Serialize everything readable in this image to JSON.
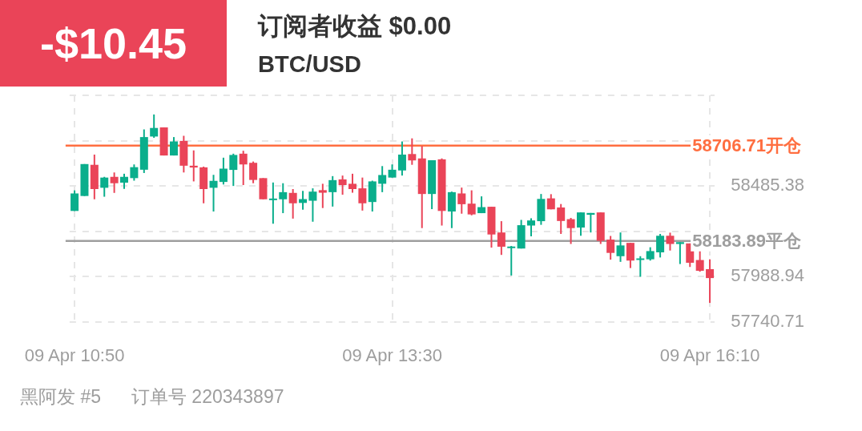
{
  "chart_data": {
    "type": "candlestick",
    "title": "订阅者收益 $0.00",
    "subtitle": "BTC/USD",
    "annotations": [
      "-$10.45",
      "黑阿发 #5",
      "订单号 220343897"
    ],
    "categories": [
      "09 Apr 10:50",
      null,
      null,
      null,
      null,
      null,
      null,
      null,
      null,
      null,
      null,
      null,
      null,
      null,
      null,
      null,
      null,
      null,
      null,
      null,
      null,
      null,
      null,
      null,
      null,
      null,
      null,
      null,
      null,
      null,
      null,
      null,
      "09 Apr 13:30",
      null,
      null,
      null,
      null,
      null,
      null,
      null,
      null,
      null,
      null,
      null,
      null,
      null,
      null,
      null,
      null,
      null,
      null,
      null,
      null,
      null,
      null,
      null,
      null,
      null,
      null,
      null,
      null,
      null,
      null,
      null,
      "09 Apr 16:10"
    ],
    "ohlc": [
      [
        58348,
        58461,
        58348,
        58444
      ],
      [
        58430,
        58605,
        58430,
        58605
      ],
      [
        58601,
        58657,
        58412,
        58468
      ],
      [
        58475,
        58535,
        58426,
        58531
      ],
      [
        58535,
        58559,
        58447,
        58500
      ],
      [
        58503,
        58552,
        58469,
        58535
      ],
      [
        58528,
        58603,
        58514,
        58588
      ],
      [
        58574,
        58795,
        58556,
        58753
      ],
      [
        58756,
        58877,
        58749,
        58803
      ],
      [
        58806,
        58806,
        58652,
        58652
      ],
      [
        58652,
        58753,
        58652,
        58729
      ],
      [
        58732,
        58760,
        58559,
        58596
      ],
      [
        58596,
        58680,
        58510,
        58586
      ],
      [
        58587,
        58591,
        58390,
        58468
      ],
      [
        58475,
        58546,
        58345,
        58513
      ],
      [
        58507,
        58640,
        58493,
        58580
      ],
      [
        58573,
        58662,
        58485,
        58655
      ],
      [
        58662,
        58678,
        58490,
        58603
      ],
      [
        58612,
        58619,
        58500,
        58518
      ],
      [
        58528,
        58528,
        58412,
        58412
      ],
      [
        58409,
        58504,
        58278,
        58416
      ],
      [
        58412,
        58500,
        58336,
        58451
      ],
      [
        58447,
        58468,
        58306,
        58390
      ],
      [
        58392,
        58458,
        58355,
        58413
      ],
      [
        58404,
        58472,
        58289,
        58454
      ],
      [
        58462,
        58497,
        58364,
        58448
      ],
      [
        58451,
        58539,
        58372,
        58517
      ],
      [
        58521,
        58542,
        58437,
        58490
      ],
      [
        58497,
        58552,
        58448,
        58468
      ],
      [
        58472,
        58531,
        58350,
        58390
      ],
      [
        58397,
        58514,
        58345,
        58510
      ],
      [
        58497,
        58594,
        58451,
        58545
      ],
      [
        58531,
        58603,
        58531,
        58574
      ],
      [
        58570,
        58729,
        58542,
        58657
      ],
      [
        58660,
        58746,
        58601,
        58625
      ],
      [
        58636,
        58704,
        58254,
        58441
      ],
      [
        58441,
        58626,
        58358,
        58626
      ],
      [
        58631,
        58636,
        58268,
        58348
      ],
      [
        58345,
        58454,
        58254,
        58451
      ],
      [
        58444,
        58476,
        58333,
        58385
      ],
      [
        58388,
        58461,
        58324,
        58329
      ],
      [
        58336,
        58428,
        58336,
        58369
      ],
      [
        58371,
        58371,
        58147,
        58219
      ],
      [
        58230,
        58292,
        58107,
        58152
      ],
      [
        58146,
        58156,
        57994,
        58153
      ],
      [
        58142,
        58299,
        58142,
        58270
      ],
      [
        58268,
        58308,
        58209,
        58296
      ],
      [
        58292,
        58441,
        58272,
        58414
      ],
      [
        58417,
        58440,
        58357,
        58357
      ],
      [
        58367,
        58386,
        58222,
        58293
      ],
      [
        58303,
        58310,
        58167,
        58254
      ],
      [
        58257,
        58340,
        58212,
        58340
      ],
      [
        58327,
        58337,
        58230,
        58337
      ],
      [
        58340,
        58340,
        58167,
        58184
      ],
      [
        58191,
        58211,
        58081,
        58118
      ],
      [
        58100,
        58230,
        58069,
        58159
      ],
      [
        58173,
        58173,
        58035,
        58076
      ],
      [
        58083,
        58100,
        57987,
        58088
      ],
      [
        58083,
        58149,
        58076,
        58128
      ],
      [
        58121,
        58222,
        58093,
        58212
      ],
      [
        58212,
        58229,
        58131,
        58167
      ],
      [
        58167,
        58177,
        58057,
        58177
      ],
      [
        58170,
        58170,
        58041,
        58064
      ],
      [
        58079,
        58131,
        58015,
        58020
      ],
      [
        58029,
        58083,
        57844,
        57980
      ]
    ],
    "colors": [
      "#0aae8c",
      "#0aae8c",
      "#ea4458",
      "#0aae8c",
      "#ea4458",
      "#0aae8c",
      "#0aae8c",
      "#0aae8c",
      "#0aae8c",
      "#ea4458",
      "#0aae8c",
      "#ea4458",
      "#ea4458",
      "#ea4458",
      "#0aae8c",
      "#0aae8c",
      "#0aae8c",
      "#ea4458",
      "#ea4458",
      "#ea4458",
      "#0aae8c",
      "#0aae8c",
      "#ea4458",
      "#0aae8c",
      "#0aae8c",
      "#ea4458",
      "#0aae8c",
      "#ea4458",
      "#ea4458",
      "#ea4458",
      "#0aae8c",
      "#0aae8c",
      "#0aae8c",
      "#0aae8c",
      "#ea4458",
      "#ea4458",
      "#0aae8c",
      "#ea4458",
      "#0aae8c",
      "#ea4458",
      "#ea4458",
      "#0aae8c",
      "#ea4458",
      "#ea4458",
      "#0aae8c",
      "#0aae8c",
      "#0aae8c",
      "#0aae8c",
      "#ea4458",
      "#ea4458",
      "#ea4458",
      "#0aae8c",
      "#0aae8c",
      "#ea4458",
      "#ea4458",
      "#0aae8c",
      "#ea4458",
      "#0aae8c",
      "#0aae8c",
      "#0aae8c",
      "#ea4458",
      "#0aae8c",
      "#ea4458",
      "#ea4458",
      "#ea4458"
    ],
    "ylim": [
      57740.71,
      58981.83
    ],
    "yticks": [
      57740.71,
      57988.94,
      {
        "value": 58237.16,
        "label": null
      },
      58485.38,
      {
        "value": 58733.6,
        "label": null
      },
      {
        "value": 58981.83,
        "label": null
      }
    ],
    "grid": true,
    "ref_lines": [
      {
        "axis": "y",
        "value": 58706.71,
        "label": "58706.71开仓",
        "color": "#ff6e40"
      },
      {
        "axis": "y",
        "value": 58183.89,
        "label": "58183.89平仓",
        "color": "#9e9e9e"
      }
    ]
  }
}
